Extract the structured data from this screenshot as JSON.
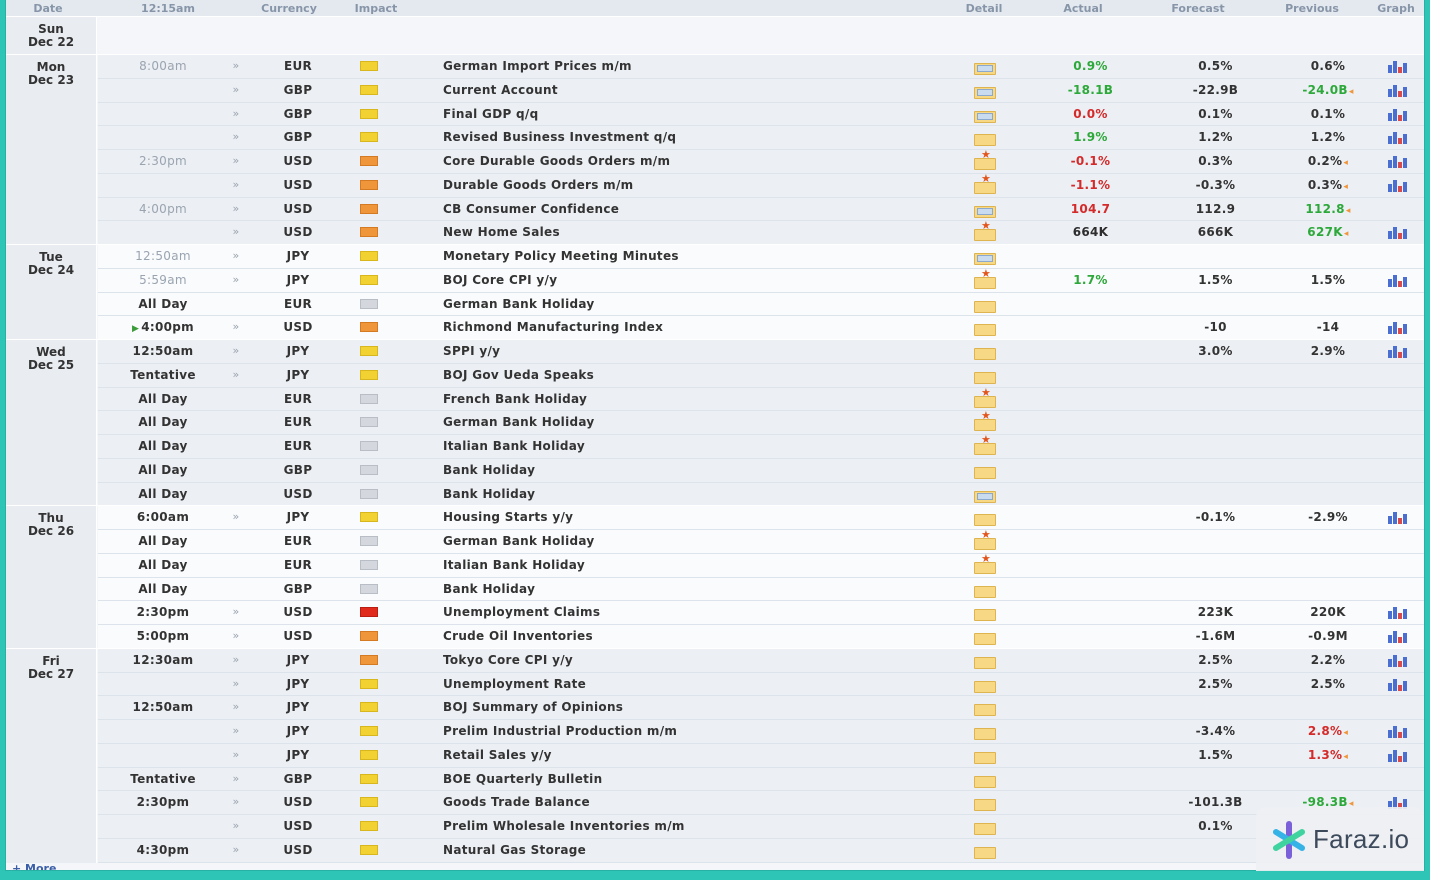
{
  "header": {
    "date": "Date",
    "time": "12:15am",
    "currency": "Currency",
    "impact": "Impact",
    "detail": "Detail",
    "actual": "Actual",
    "forecast": "Forecast",
    "previous": "Previous",
    "graph": "Graph"
  },
  "days": [
    {
      "day": "Sun",
      "date": "Dec 22",
      "events": []
    },
    {
      "day": "Mon",
      "date": "Dec 23",
      "events": [
        {
          "time": "8:00am",
          "time_style": "grey",
          "alarm": true,
          "currency": "EUR",
          "impact": "low",
          "event": "German Import Prices m/m",
          "detail": "b",
          "actual": "0.9%",
          "actual_color": "green",
          "forecast": "0.5%",
          "previous": "0.6%",
          "previous_color": "",
          "prev_arrow": false,
          "graph": true,
          "shade": true
        },
        {
          "time": "",
          "time_style": "",
          "alarm": true,
          "currency": "GBP",
          "impact": "low",
          "event": "Current Account",
          "detail": "b",
          "actual": "-18.1B",
          "actual_color": "green",
          "forecast": "-22.9B",
          "previous": "-24.0B",
          "previous_color": "green",
          "prev_arrow": true,
          "graph": true,
          "shade": true
        },
        {
          "time": "",
          "time_style": "",
          "alarm": true,
          "currency": "GBP",
          "impact": "low",
          "event": "Final GDP q/q",
          "detail": "b",
          "actual": "0.0%",
          "actual_color": "red",
          "forecast": "0.1%",
          "previous": "0.1%",
          "previous_color": "",
          "prev_arrow": false,
          "graph": true,
          "shade": true
        },
        {
          "time": "",
          "time_style": "",
          "alarm": true,
          "currency": "GBP",
          "impact": "low",
          "event": "Revised Business Investment q/q",
          "detail": "p",
          "actual": "1.9%",
          "actual_color": "green",
          "forecast": "1.2%",
          "previous": "1.2%",
          "previous_color": "",
          "prev_arrow": false,
          "graph": true,
          "shade": true
        },
        {
          "time": "2:30pm",
          "time_style": "grey",
          "alarm": true,
          "currency": "USD",
          "impact": "med",
          "event": "Core Durable Goods Orders m/m",
          "detail": "s",
          "actual": "-0.1%",
          "actual_color": "red",
          "forecast": "0.3%",
          "previous": "0.2%",
          "previous_color": "",
          "prev_arrow": true,
          "graph": true,
          "shade": true
        },
        {
          "time": "",
          "time_style": "",
          "alarm": true,
          "currency": "USD",
          "impact": "med",
          "event": "Durable Goods Orders m/m",
          "detail": "s",
          "actual": "-1.1%",
          "actual_color": "red",
          "forecast": "-0.3%",
          "previous": "0.3%",
          "previous_color": "",
          "prev_arrow": true,
          "graph": true,
          "shade": true
        },
        {
          "time": "4:00pm",
          "time_style": "grey",
          "alarm": true,
          "currency": "USD",
          "impact": "med",
          "event": "CB Consumer Confidence",
          "detail": "b",
          "actual": "104.7",
          "actual_color": "red",
          "forecast": "112.9",
          "previous": "112.8",
          "previous_color": "green",
          "prev_arrow": true,
          "graph": false,
          "shade": true
        },
        {
          "time": "",
          "time_style": "",
          "alarm": true,
          "currency": "USD",
          "impact": "med",
          "event": "New Home Sales",
          "detail": "s",
          "actual": "664K",
          "actual_color": "",
          "forecast": "666K",
          "previous": "627K",
          "previous_color": "green",
          "prev_arrow": true,
          "graph": true,
          "shade": true
        }
      ]
    },
    {
      "day": "Tue",
      "date": "Dec 24",
      "events": [
        {
          "time": "12:50am",
          "time_style": "grey",
          "alarm": true,
          "currency": "JPY",
          "impact": "low",
          "event": "Monetary Policy Meeting Minutes",
          "detail": "b",
          "actual": "",
          "actual_color": "",
          "forecast": "",
          "previous": "",
          "previous_color": "",
          "prev_arrow": false,
          "graph": false,
          "shade": false
        },
        {
          "time": "5:59am",
          "time_style": "grey",
          "alarm": true,
          "currency": "JPY",
          "impact": "low",
          "event": "BOJ Core CPI y/y",
          "detail": "s",
          "actual": "1.7%",
          "actual_color": "green",
          "forecast": "1.5%",
          "previous": "1.5%",
          "previous_color": "",
          "prev_arrow": false,
          "graph": true,
          "shade": false
        },
        {
          "time": "All Day",
          "time_style": "",
          "alarm": false,
          "currency": "EUR",
          "impact": "non",
          "event": "German Bank Holiday",
          "detail": "p",
          "actual": "",
          "actual_color": "",
          "forecast": "",
          "previous": "",
          "previous_color": "",
          "prev_arrow": false,
          "graph": false,
          "shade": false
        },
        {
          "time": "4:00pm",
          "time_style": "next",
          "alarm": true,
          "currency": "USD",
          "impact": "med",
          "event": "Richmond Manufacturing Index",
          "detail": "p",
          "actual": "",
          "actual_color": "",
          "forecast": "-10",
          "previous": "-14",
          "previous_color": "",
          "prev_arrow": false,
          "graph": true,
          "shade": false
        }
      ]
    },
    {
      "day": "Wed",
      "date": "Dec 25",
      "events": [
        {
          "time": "12:50am",
          "time_style": "",
          "alarm": true,
          "currency": "JPY",
          "impact": "low",
          "event": "SPPI y/y",
          "detail": "p",
          "actual": "",
          "actual_color": "",
          "forecast": "3.0%",
          "previous": "2.9%",
          "previous_color": "",
          "prev_arrow": false,
          "graph": true,
          "shade": true
        },
        {
          "time": "Tentative",
          "time_style": "",
          "alarm": true,
          "currency": "JPY",
          "impact": "low",
          "event": "BOJ Gov Ueda Speaks",
          "detail": "p",
          "actual": "",
          "actual_color": "",
          "forecast": "",
          "previous": "",
          "previous_color": "",
          "prev_arrow": false,
          "graph": false,
          "shade": true
        },
        {
          "time": "All Day",
          "time_style": "",
          "alarm": false,
          "currency": "EUR",
          "impact": "non",
          "event": "French Bank Holiday",
          "detail": "s",
          "actual": "",
          "actual_color": "",
          "forecast": "",
          "previous": "",
          "previous_color": "",
          "prev_arrow": false,
          "graph": false,
          "shade": true
        },
        {
          "time": "All Day",
          "time_style": "",
          "alarm": false,
          "currency": "EUR",
          "impact": "non",
          "event": "German Bank Holiday",
          "detail": "s",
          "actual": "",
          "actual_color": "",
          "forecast": "",
          "previous": "",
          "previous_color": "",
          "prev_arrow": false,
          "graph": false,
          "shade": true
        },
        {
          "time": "All Day",
          "time_style": "",
          "alarm": false,
          "currency": "EUR",
          "impact": "non",
          "event": "Italian Bank Holiday",
          "detail": "s",
          "actual": "",
          "actual_color": "",
          "forecast": "",
          "previous": "",
          "previous_color": "",
          "prev_arrow": false,
          "graph": false,
          "shade": true
        },
        {
          "time": "All Day",
          "time_style": "",
          "alarm": false,
          "currency": "GBP",
          "impact": "non",
          "event": "Bank Holiday",
          "detail": "p",
          "actual": "",
          "actual_color": "",
          "forecast": "",
          "previous": "",
          "previous_color": "",
          "prev_arrow": false,
          "graph": false,
          "shade": true
        },
        {
          "time": "All Day",
          "time_style": "",
          "alarm": false,
          "currency": "USD",
          "impact": "non",
          "event": "Bank Holiday",
          "detail": "b",
          "actual": "",
          "actual_color": "",
          "forecast": "",
          "previous": "",
          "previous_color": "",
          "prev_arrow": false,
          "graph": false,
          "shade": true
        }
      ]
    },
    {
      "day": "Thu",
      "date": "Dec 26",
      "events": [
        {
          "time": "6:00am",
          "time_style": "",
          "alarm": true,
          "currency": "JPY",
          "impact": "low",
          "event": "Housing Starts y/y",
          "detail": "p",
          "actual": "",
          "actual_color": "",
          "forecast": "-0.1%",
          "previous": "-2.9%",
          "previous_color": "",
          "prev_arrow": false,
          "graph": true,
          "shade": false
        },
        {
          "time": "All Day",
          "time_style": "",
          "alarm": false,
          "currency": "EUR",
          "impact": "non",
          "event": "German Bank Holiday",
          "detail": "s",
          "actual": "",
          "actual_color": "",
          "forecast": "",
          "previous": "",
          "previous_color": "",
          "prev_arrow": false,
          "graph": false,
          "shade": false
        },
        {
          "time": "All Day",
          "time_style": "",
          "alarm": false,
          "currency": "EUR",
          "impact": "non",
          "event": "Italian Bank Holiday",
          "detail": "s",
          "actual": "",
          "actual_color": "",
          "forecast": "",
          "previous": "",
          "previous_color": "",
          "prev_arrow": false,
          "graph": false,
          "shade": false
        },
        {
          "time": "All Day",
          "time_style": "",
          "alarm": false,
          "currency": "GBP",
          "impact": "non",
          "event": "Bank Holiday",
          "detail": "p",
          "actual": "",
          "actual_color": "",
          "forecast": "",
          "previous": "",
          "previous_color": "",
          "prev_arrow": false,
          "graph": false,
          "shade": false
        },
        {
          "time": "2:30pm",
          "time_style": "",
          "alarm": true,
          "currency": "USD",
          "impact": "high",
          "event": "Unemployment Claims",
          "detail": "p",
          "actual": "",
          "actual_color": "",
          "forecast": "223K",
          "previous": "220K",
          "previous_color": "",
          "prev_arrow": false,
          "graph": true,
          "shade": false
        },
        {
          "time": "5:00pm",
          "time_style": "",
          "alarm": true,
          "currency": "USD",
          "impact": "med",
          "event": "Crude Oil Inventories",
          "detail": "p",
          "actual": "",
          "actual_color": "",
          "forecast": "-1.6M",
          "previous": "-0.9M",
          "previous_color": "",
          "prev_arrow": false,
          "graph": true,
          "shade": false
        }
      ]
    },
    {
      "day": "Fri",
      "date": "Dec 27",
      "events": [
        {
          "time": "12:30am",
          "time_style": "",
          "alarm": true,
          "currency": "JPY",
          "impact": "med",
          "event": "Tokyo Core CPI y/y",
          "detail": "p",
          "actual": "",
          "actual_color": "",
          "forecast": "2.5%",
          "previous": "2.2%",
          "previous_color": "",
          "prev_arrow": false,
          "graph": true,
          "shade": true
        },
        {
          "time": "",
          "time_style": "",
          "alarm": true,
          "currency": "JPY",
          "impact": "low",
          "event": "Unemployment Rate",
          "detail": "p",
          "actual": "",
          "actual_color": "",
          "forecast": "2.5%",
          "previous": "2.5%",
          "previous_color": "",
          "prev_arrow": false,
          "graph": true,
          "shade": true
        },
        {
          "time": "12:50am",
          "time_style": "",
          "alarm": true,
          "currency": "JPY",
          "impact": "low",
          "event": "BOJ Summary of Opinions",
          "detail": "p",
          "actual": "",
          "actual_color": "",
          "forecast": "",
          "previous": "",
          "previous_color": "",
          "prev_arrow": false,
          "graph": false,
          "shade": true
        },
        {
          "time": "",
          "time_style": "",
          "alarm": true,
          "currency": "JPY",
          "impact": "low",
          "event": "Prelim Industrial Production m/m",
          "detail": "p",
          "actual": "",
          "actual_color": "",
          "forecast": "-3.4%",
          "previous": "2.8%",
          "previous_color": "red",
          "prev_arrow": true,
          "graph": true,
          "shade": true
        },
        {
          "time": "",
          "time_style": "",
          "alarm": true,
          "currency": "JPY",
          "impact": "low",
          "event": "Retail Sales y/y",
          "detail": "p",
          "actual": "",
          "actual_color": "",
          "forecast": "1.5%",
          "previous": "1.3%",
          "previous_color": "red",
          "prev_arrow": true,
          "graph": true,
          "shade": true
        },
        {
          "time": "Tentative",
          "time_style": "",
          "alarm": true,
          "currency": "GBP",
          "impact": "low",
          "event": "BOE Quarterly Bulletin",
          "detail": "p",
          "actual": "",
          "actual_color": "",
          "forecast": "",
          "previous": "",
          "previous_color": "",
          "prev_arrow": false,
          "graph": false,
          "shade": true
        },
        {
          "time": "2:30pm",
          "time_style": "",
          "alarm": true,
          "currency": "USD",
          "impact": "low",
          "event": "Goods Trade Balance",
          "detail": "p",
          "actual": "",
          "actual_color": "",
          "forecast": "-101.3B",
          "previous": "-98.3B",
          "previous_color": "green",
          "prev_arrow": true,
          "graph": true,
          "shade": true
        },
        {
          "time": "",
          "time_style": "",
          "alarm": true,
          "currency": "USD",
          "impact": "low",
          "event": "Prelim Wholesale Inventories m/m",
          "detail": "p",
          "actual": "",
          "actual_color": "",
          "forecast": "0.1%",
          "previous": "",
          "previous_color": "",
          "prev_arrow": false,
          "graph": false,
          "shade": true
        },
        {
          "time": "4:30pm",
          "time_style": "",
          "alarm": true,
          "currency": "USD",
          "impact": "low",
          "event": "Natural Gas Storage",
          "detail": "p",
          "actual": "",
          "actual_color": "",
          "forecast": "",
          "previous": "",
          "previous_color": "",
          "prev_arrow": false,
          "graph": false,
          "shade": true
        }
      ]
    }
  ],
  "footer": {
    "more": "+ More"
  },
  "watermark": {
    "text": "Faraz.io"
  },
  "colors": {
    "accent_frame": "#2ec4b6",
    "positive": "#2da83a",
    "negative": "#d42a2a",
    "impact_low": "#f2d233",
    "impact_medium": "#f0963a",
    "impact_high": "#e02a1c",
    "impact_none": "#d4d8de"
  },
  "icons": {
    "alarm": "alarm-icon",
    "detail": "detail-folder-icon",
    "graph": "bar-graph-icon",
    "next_event": "play-icon"
  }
}
